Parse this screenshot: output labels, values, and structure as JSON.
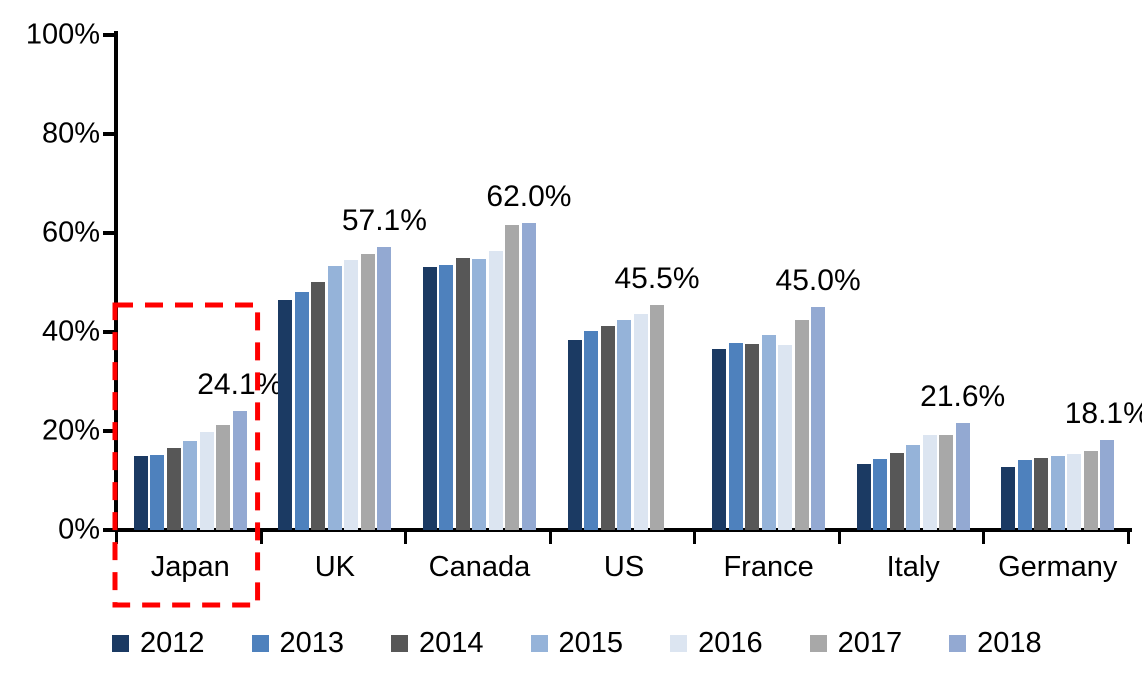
{
  "chart_data": {
    "type": "bar",
    "title": "",
    "xlabel": "",
    "ylabel": "",
    "ylim": [
      0,
      100
    ],
    "grid": false,
    "legend_position": "bottom",
    "y_ticks": [
      "0%",
      "20%",
      "40%",
      "60%",
      "80%",
      "100%"
    ],
    "categories": [
      "Japan",
      "UK",
      "Canada",
      "US",
      "France",
      "Italy",
      "Germany"
    ],
    "series": [
      {
        "name": "2012",
        "color": "#1B3A63",
        "values": [
          14.9,
          46.4,
          53.1,
          38.3,
          36.6,
          13.3,
          12.7
        ]
      },
      {
        "name": "2013",
        "color": "#4E81BD",
        "values": [
          15.1,
          48.0,
          53.6,
          40.2,
          37.8,
          14.3,
          14.1
        ]
      },
      {
        "name": "2014",
        "color": "#575757",
        "values": [
          16.6,
          50.1,
          55.0,
          41.3,
          37.6,
          15.5,
          14.5
        ]
      },
      {
        "name": "2015",
        "color": "#95B3D9",
        "values": [
          18.0,
          53.4,
          54.8,
          42.4,
          39.3,
          17.2,
          14.9
        ]
      },
      {
        "name": "2016",
        "color": "#DCE5F1",
        "values": [
          19.9,
          54.6,
          56.3,
          43.7,
          37.4,
          19.2,
          15.4
        ]
      },
      {
        "name": "2017",
        "color": "#A8A8A8",
        "values": [
          21.2,
          55.8,
          61.6,
          45.5,
          42.4,
          19.2,
          16.0
        ]
      },
      {
        "name": "2018",
        "color": "#93A9D2",
        "values": [
          24.1,
          57.1,
          62.0,
          null,
          45.0,
          21.6,
          18.1
        ]
      }
    ],
    "data_labels": [
      "24.1%",
      "57.1%",
      "62.0%",
      "45.5%",
      "45.0%",
      "21.6%",
      "18.1%"
    ],
    "highlight": {
      "category": "Japan",
      "style": "red-dashed-box",
      "color": "#FF0000"
    }
  }
}
